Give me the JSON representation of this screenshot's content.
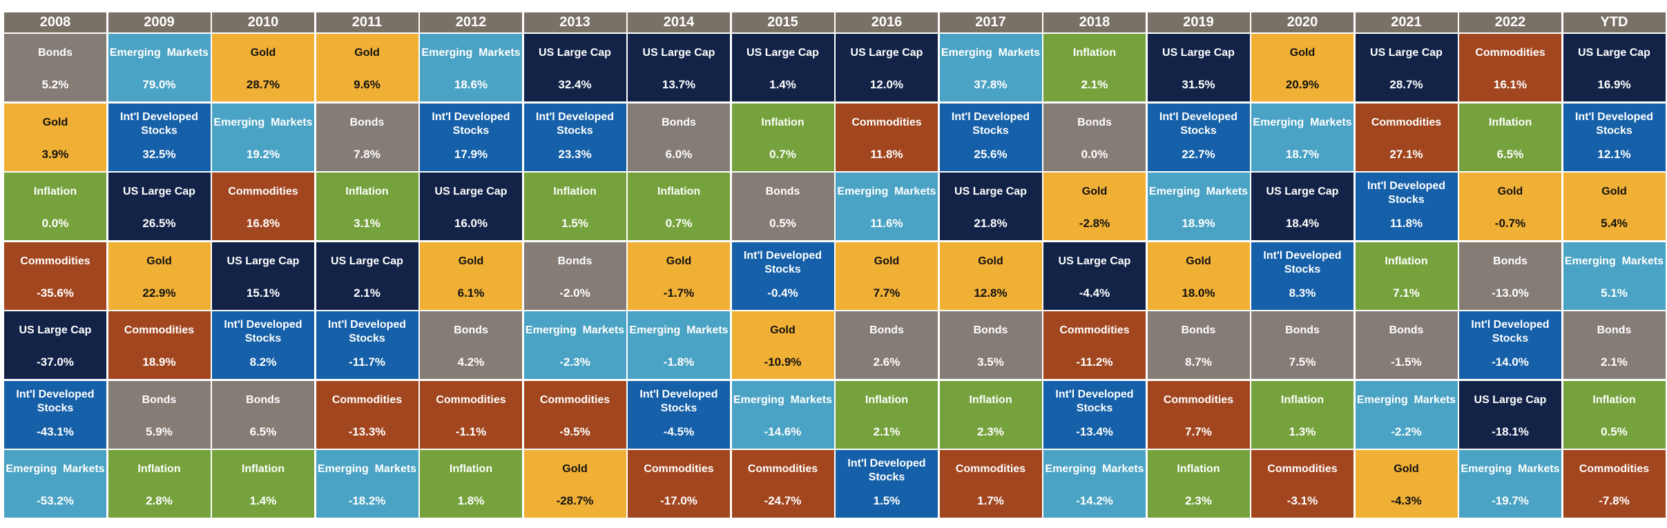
{
  "chart_data": {
    "type": "table",
    "title": "",
    "columns": [
      "2008",
      "2009",
      "2010",
      "2011",
      "2012",
      "2013",
      "2014",
      "2015",
      "2016",
      "2017",
      "2018",
      "2019",
      "2020",
      "2021",
      "2022",
      "YTD"
    ],
    "asset_colors": {
      "Bonds": "#857c76",
      "Emerging  Markets": "#4aa3c4",
      "Gold": "#f0b035",
      "US Large Cap": "#132348",
      "Int'l Developed Stocks": "#1560a8",
      "Inflation": "#75a23c",
      "Commodities": "#a2461f"
    },
    "header_color": "#7a7166",
    "rows_ranked": [
      [
        {
          "asset": "Bonds",
          "value": "5.2%"
        },
        {
          "asset": "Emerging  Markets",
          "value": "79.0%"
        },
        {
          "asset": "Gold",
          "value": "28.7%"
        },
        {
          "asset": "Gold",
          "value": "9.6%"
        },
        {
          "asset": "Emerging  Markets",
          "value": "18.6%"
        },
        {
          "asset": "US Large Cap",
          "value": "32.4%"
        },
        {
          "asset": "US Large Cap",
          "value": "13.7%"
        },
        {
          "asset": "US Large Cap",
          "value": "1.4%"
        },
        {
          "asset": "US Large Cap",
          "value": "12.0%"
        },
        {
          "asset": "Emerging  Markets",
          "value": "37.8%"
        },
        {
          "asset": "Inflation",
          "value": "2.1%"
        },
        {
          "asset": "US Large Cap",
          "value": "31.5%"
        },
        {
          "asset": "Gold",
          "value": "20.9%"
        },
        {
          "asset": "US Large Cap",
          "value": "28.7%"
        },
        {
          "asset": "Commodities",
          "value": "16.1%"
        },
        {
          "asset": "US Large Cap",
          "value": "16.9%"
        }
      ],
      [
        {
          "asset": "Gold",
          "value": "3.9%"
        },
        {
          "asset": "Int'l Developed Stocks",
          "value": "32.5%"
        },
        {
          "asset": "Emerging  Markets",
          "value": "19.2%"
        },
        {
          "asset": "Bonds",
          "value": "7.8%"
        },
        {
          "asset": "Int'l Developed Stocks",
          "value": "17.9%"
        },
        {
          "asset": "Int'l Developed Stocks",
          "value": "23.3%"
        },
        {
          "asset": "Bonds",
          "value": "6.0%"
        },
        {
          "asset": "Inflation",
          "value": "0.7%"
        },
        {
          "asset": "Commodities",
          "value": "11.8%"
        },
        {
          "asset": "Int'l Developed Stocks",
          "value": "25.6%"
        },
        {
          "asset": "Bonds",
          "value": "0.0%"
        },
        {
          "asset": "Int'l Developed Stocks",
          "value": "22.7%"
        },
        {
          "asset": "Emerging  Markets",
          "value": "18.7%"
        },
        {
          "asset": "Commodities",
          "value": "27.1%"
        },
        {
          "asset": "Inflation",
          "value": "6.5%"
        },
        {
          "asset": "Int'l Developed Stocks",
          "value": "12.1%"
        }
      ],
      [
        {
          "asset": "Inflation",
          "value": "0.0%"
        },
        {
          "asset": "US Large Cap",
          "value": "26.5%"
        },
        {
          "asset": "Commodities",
          "value": "16.8%"
        },
        {
          "asset": "Inflation",
          "value": "3.1%"
        },
        {
          "asset": "US Large Cap",
          "value": "16.0%"
        },
        {
          "asset": "Inflation",
          "value": "1.5%"
        },
        {
          "asset": "Inflation",
          "value": "0.7%"
        },
        {
          "asset": "Bonds",
          "value": "0.5%"
        },
        {
          "asset": "Emerging  Markets",
          "value": "11.6%"
        },
        {
          "asset": "US Large Cap",
          "value": "21.8%"
        },
        {
          "asset": "Gold",
          "value": "-2.8%"
        },
        {
          "asset": "Emerging  Markets",
          "value": "18.9%"
        },
        {
          "asset": "US Large Cap",
          "value": "18.4%"
        },
        {
          "asset": "Int'l Developed Stocks",
          "value": "11.8%"
        },
        {
          "asset": "Gold",
          "value": "-0.7%"
        },
        {
          "asset": "Gold",
          "value": "5.4%"
        }
      ],
      [
        {
          "asset": "Commodities",
          "value": "-35.6%"
        },
        {
          "asset": "Gold",
          "value": "22.9%"
        },
        {
          "asset": "US Large Cap",
          "value": "15.1%"
        },
        {
          "asset": "US Large Cap",
          "value": "2.1%"
        },
        {
          "asset": "Gold",
          "value": "6.1%"
        },
        {
          "asset": "Bonds",
          "value": "-2.0%"
        },
        {
          "asset": "Gold",
          "value": "-1.7%"
        },
        {
          "asset": "Int'l Developed Stocks",
          "value": "-0.4%"
        },
        {
          "asset": "Gold",
          "value": "7.7%"
        },
        {
          "asset": "Gold",
          "value": "12.8%"
        },
        {
          "asset": "US Large Cap",
          "value": "-4.4%"
        },
        {
          "asset": "Gold",
          "value": "18.0%"
        },
        {
          "asset": "Int'l Developed Stocks",
          "value": "8.3%"
        },
        {
          "asset": "Inflation",
          "value": "7.1%"
        },
        {
          "asset": "Bonds",
          "value": "-13.0%"
        },
        {
          "asset": "Emerging  Markets",
          "value": "5.1%"
        }
      ],
      [
        {
          "asset": "US Large Cap",
          "value": "-37.0%"
        },
        {
          "asset": "Commodities",
          "value": "18.9%"
        },
        {
          "asset": "Int'l Developed Stocks",
          "value": "8.2%"
        },
        {
          "asset": "Int'l Developed Stocks",
          "value": "-11.7%"
        },
        {
          "asset": "Bonds",
          "value": "4.2%"
        },
        {
          "asset": "Emerging  Markets",
          "value": "-2.3%"
        },
        {
          "asset": "Emerging  Markets",
          "value": "-1.8%"
        },
        {
          "asset": "Gold",
          "value": "-10.9%"
        },
        {
          "asset": "Bonds",
          "value": "2.6%"
        },
        {
          "asset": "Bonds",
          "value": "3.5%"
        },
        {
          "asset": "Commodities",
          "value": "-11.2%"
        },
        {
          "asset": "Bonds",
          "value": "8.7%"
        },
        {
          "asset": "Bonds",
          "value": "7.5%"
        },
        {
          "asset": "Bonds",
          "value": "-1.5%"
        },
        {
          "asset": "Int'l Developed Stocks",
          "value": "-14.0%"
        },
        {
          "asset": "Bonds",
          "value": "2.1%"
        }
      ],
      [
        {
          "asset": "Int'l Developed Stocks",
          "value": "-43.1%"
        },
        {
          "asset": "Bonds",
          "value": "5.9%"
        },
        {
          "asset": "Bonds",
          "value": "6.5%"
        },
        {
          "asset": "Commodities",
          "value": "-13.3%"
        },
        {
          "asset": "Commodities",
          "value": "-1.1%"
        },
        {
          "asset": "Commodities",
          "value": "-9.5%"
        },
        {
          "asset": "Int'l Developed Stocks",
          "value": "-4.5%"
        },
        {
          "asset": "Emerging  Markets",
          "value": "-14.6%"
        },
        {
          "asset": "Inflation",
          "value": "2.1%"
        },
        {
          "asset": "Inflation",
          "value": "2.3%"
        },
        {
          "asset": "Int'l Developed Stocks",
          "value": "-13.4%"
        },
        {
          "asset": "Commodities",
          "value": "7.7%"
        },
        {
          "asset": "Inflation",
          "value": "1.3%"
        },
        {
          "asset": "Emerging  Markets",
          "value": "-2.2%"
        },
        {
          "asset": "US Large Cap",
          "value": "-18.1%"
        },
        {
          "asset": "Inflation",
          "value": "0.5%"
        }
      ],
      [
        {
          "asset": "Emerging  Markets",
          "value": "-53.2%"
        },
        {
          "asset": "Inflation",
          "value": "2.8%"
        },
        {
          "asset": "Inflation",
          "value": "1.4%"
        },
        {
          "asset": "Emerging  Markets",
          "value": "-18.2%"
        },
        {
          "asset": "Inflation",
          "value": "1.8%"
        },
        {
          "asset": "Gold",
          "value": "-28.7%"
        },
        {
          "asset": "Commodities",
          "value": "-17.0%"
        },
        {
          "asset": "Commodities",
          "value": "-24.7%"
        },
        {
          "asset": "Int'l Developed Stocks",
          "value": "1.5%"
        },
        {
          "asset": "Commodities",
          "value": "1.7%"
        },
        {
          "asset": "Emerging  Markets",
          "value": "-14.2%"
        },
        {
          "asset": "Inflation",
          "value": "2.3%"
        },
        {
          "asset": "Commodities",
          "value": "-3.1%"
        },
        {
          "asset": "Gold",
          "value": "-4.3%"
        },
        {
          "asset": "Emerging  Markets",
          "value": "-19.7%"
        },
        {
          "asset": "Commodities",
          "value": "-7.8%"
        }
      ]
    ]
  }
}
